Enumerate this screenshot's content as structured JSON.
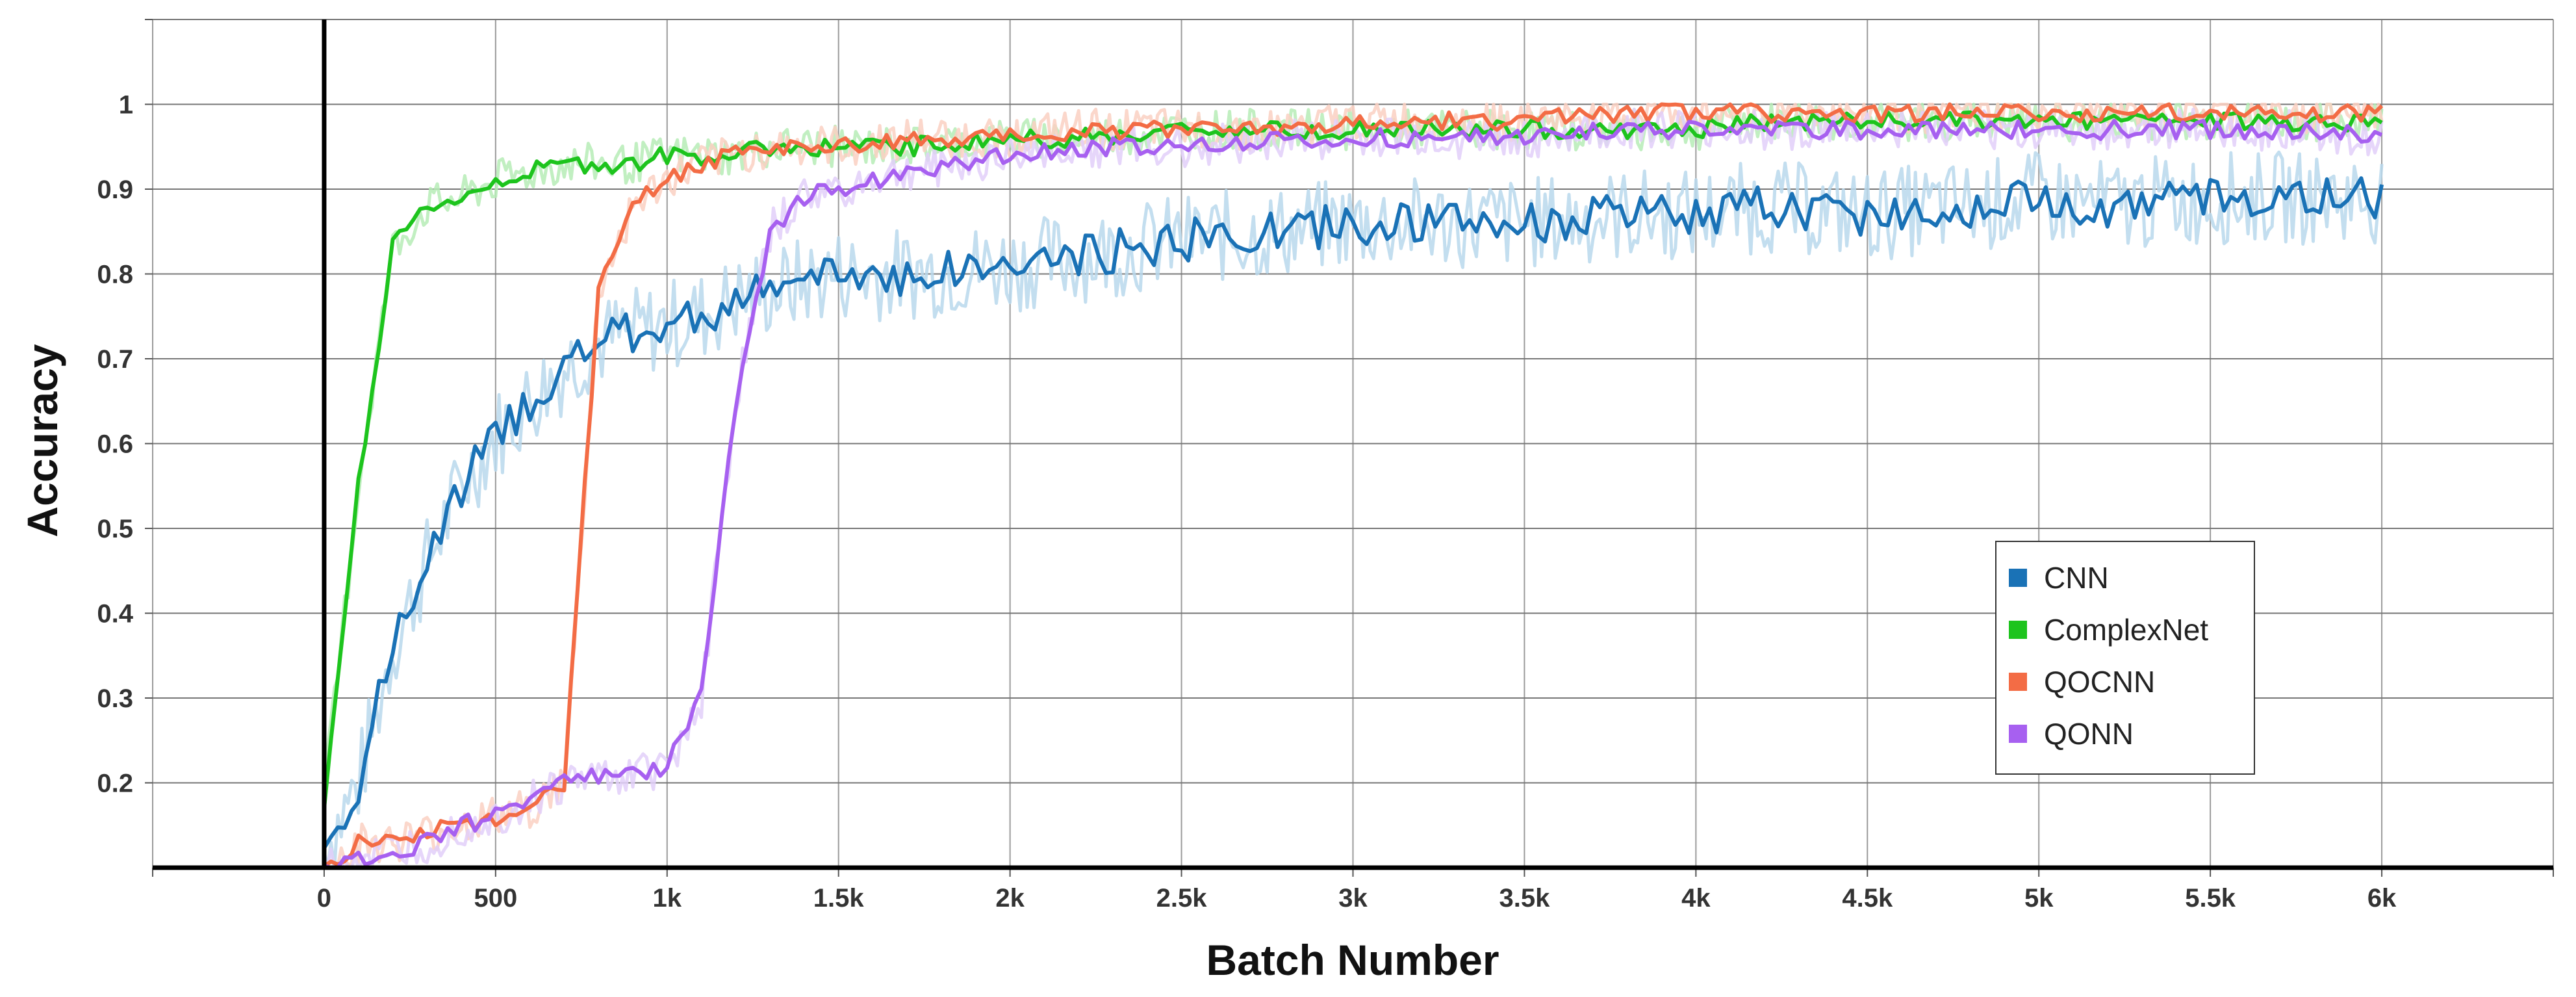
{
  "chart_data": {
    "type": "line",
    "xlabel": "Batch Number",
    "ylabel": "Accuracy",
    "xlim": [
      -500,
      6500
    ],
    "ylim": [
      0.1,
      1.1
    ],
    "x_ticks": [
      {
        "value": 0,
        "label": "0"
      },
      {
        "value": 500,
        "label": "500"
      },
      {
        "value": 1000,
        "label": "1k"
      },
      {
        "value": 1500,
        "label": "1.5k"
      },
      {
        "value": 2000,
        "label": "2k"
      },
      {
        "value": 2500,
        "label": "2.5k"
      },
      {
        "value": 3000,
        "label": "3k"
      },
      {
        "value": 3500,
        "label": "3.5k"
      },
      {
        "value": 4000,
        "label": "4k"
      },
      {
        "value": 4500,
        "label": "4.5k"
      },
      {
        "value": 5000,
        "label": "5k"
      },
      {
        "value": 5500,
        "label": "5.5k"
      },
      {
        "value": 6000,
        "label": "6k"
      }
    ],
    "y_ticks": [
      {
        "value": 0.2,
        "label": "0.2"
      },
      {
        "value": 0.3,
        "label": "0.3"
      },
      {
        "value": 0.4,
        "label": "0.4"
      },
      {
        "value": 0.5,
        "label": "0.5"
      },
      {
        "value": 0.6,
        "label": "0.6"
      },
      {
        "value": 0.7,
        "label": "0.7"
      },
      {
        "value": 0.8,
        "label": "0.8"
      },
      {
        "value": 0.9,
        "label": "0.9"
      },
      {
        "value": 1,
        "label": "1"
      }
    ],
    "grid": true,
    "legend_position": "lower-right",
    "x": [
      0,
      100,
      200,
      300,
      400,
      500,
      600,
      700,
      800,
      900,
      1000,
      1100,
      1200,
      1300,
      1400,
      1500,
      1700,
      2000,
      2200,
      2500,
      2800,
      3000,
      3200,
      3500,
      3800,
      4000,
      4200,
      4500,
      4800,
      5000,
      5200,
      5500,
      5800,
      6000
    ],
    "series": [
      {
        "name": "CNN",
        "color": "#1a72b6",
        "raw_color": "#b8d8ec",
        "values": [
          0.12,
          0.2,
          0.36,
          0.46,
          0.55,
          0.61,
          0.65,
          0.69,
          0.72,
          0.73,
          0.74,
          0.75,
          0.77,
          0.78,
          0.79,
          0.8,
          0.8,
          0.81,
          0.82,
          0.84,
          0.85,
          0.86,
          0.86,
          0.86,
          0.87,
          0.87,
          0.88,
          0.87,
          0.88,
          0.89,
          0.88,
          0.89,
          0.89,
          0.89
        ]
      },
      {
        "name": "ComplexNet",
        "color": "#1dc41d",
        "raw_color": "#b6ecb6",
        "values": [
          0.18,
          0.55,
          0.83,
          0.88,
          0.89,
          0.91,
          0.92,
          0.93,
          0.93,
          0.93,
          0.94,
          0.94,
          0.94,
          0.95,
          0.95,
          0.95,
          0.95,
          0.96,
          0.96,
          0.97,
          0.97,
          0.97,
          0.97,
          0.97,
          0.97,
          0.97,
          0.98,
          0.98,
          0.98,
          0.98,
          0.98,
          0.98,
          0.98,
          0.98
        ]
      },
      {
        "name": "QOCNN",
        "color": "#f36c45",
        "raw_color": "#fad0c2",
        "values": [
          0.1,
          0.13,
          0.13,
          0.14,
          0.15,
          0.16,
          0.17,
          0.2,
          0.78,
          0.88,
          0.91,
          0.93,
          0.94,
          0.95,
          0.95,
          0.95,
          0.96,
          0.96,
          0.97,
          0.97,
          0.97,
          0.98,
          0.98,
          0.98,
          0.99,
          0.99,
          0.99,
          0.99,
          0.99,
          0.99,
          0.99,
          0.99,
          0.99,
          0.99
        ]
      },
      {
        "name": "QONN",
        "color": "#a760f0",
        "raw_color": "#e2cff9",
        "values": [
          0.1,
          0.11,
          0.12,
          0.13,
          0.15,
          0.16,
          0.18,
          0.2,
          0.21,
          0.21,
          0.22,
          0.3,
          0.65,
          0.85,
          0.89,
          0.9,
          0.92,
          0.94,
          0.95,
          0.95,
          0.96,
          0.96,
          0.96,
          0.96,
          0.97,
          0.97,
          0.97,
          0.97,
          0.97,
          0.97,
          0.97,
          0.97,
          0.97,
          0.96
        ]
      }
    ]
  }
}
